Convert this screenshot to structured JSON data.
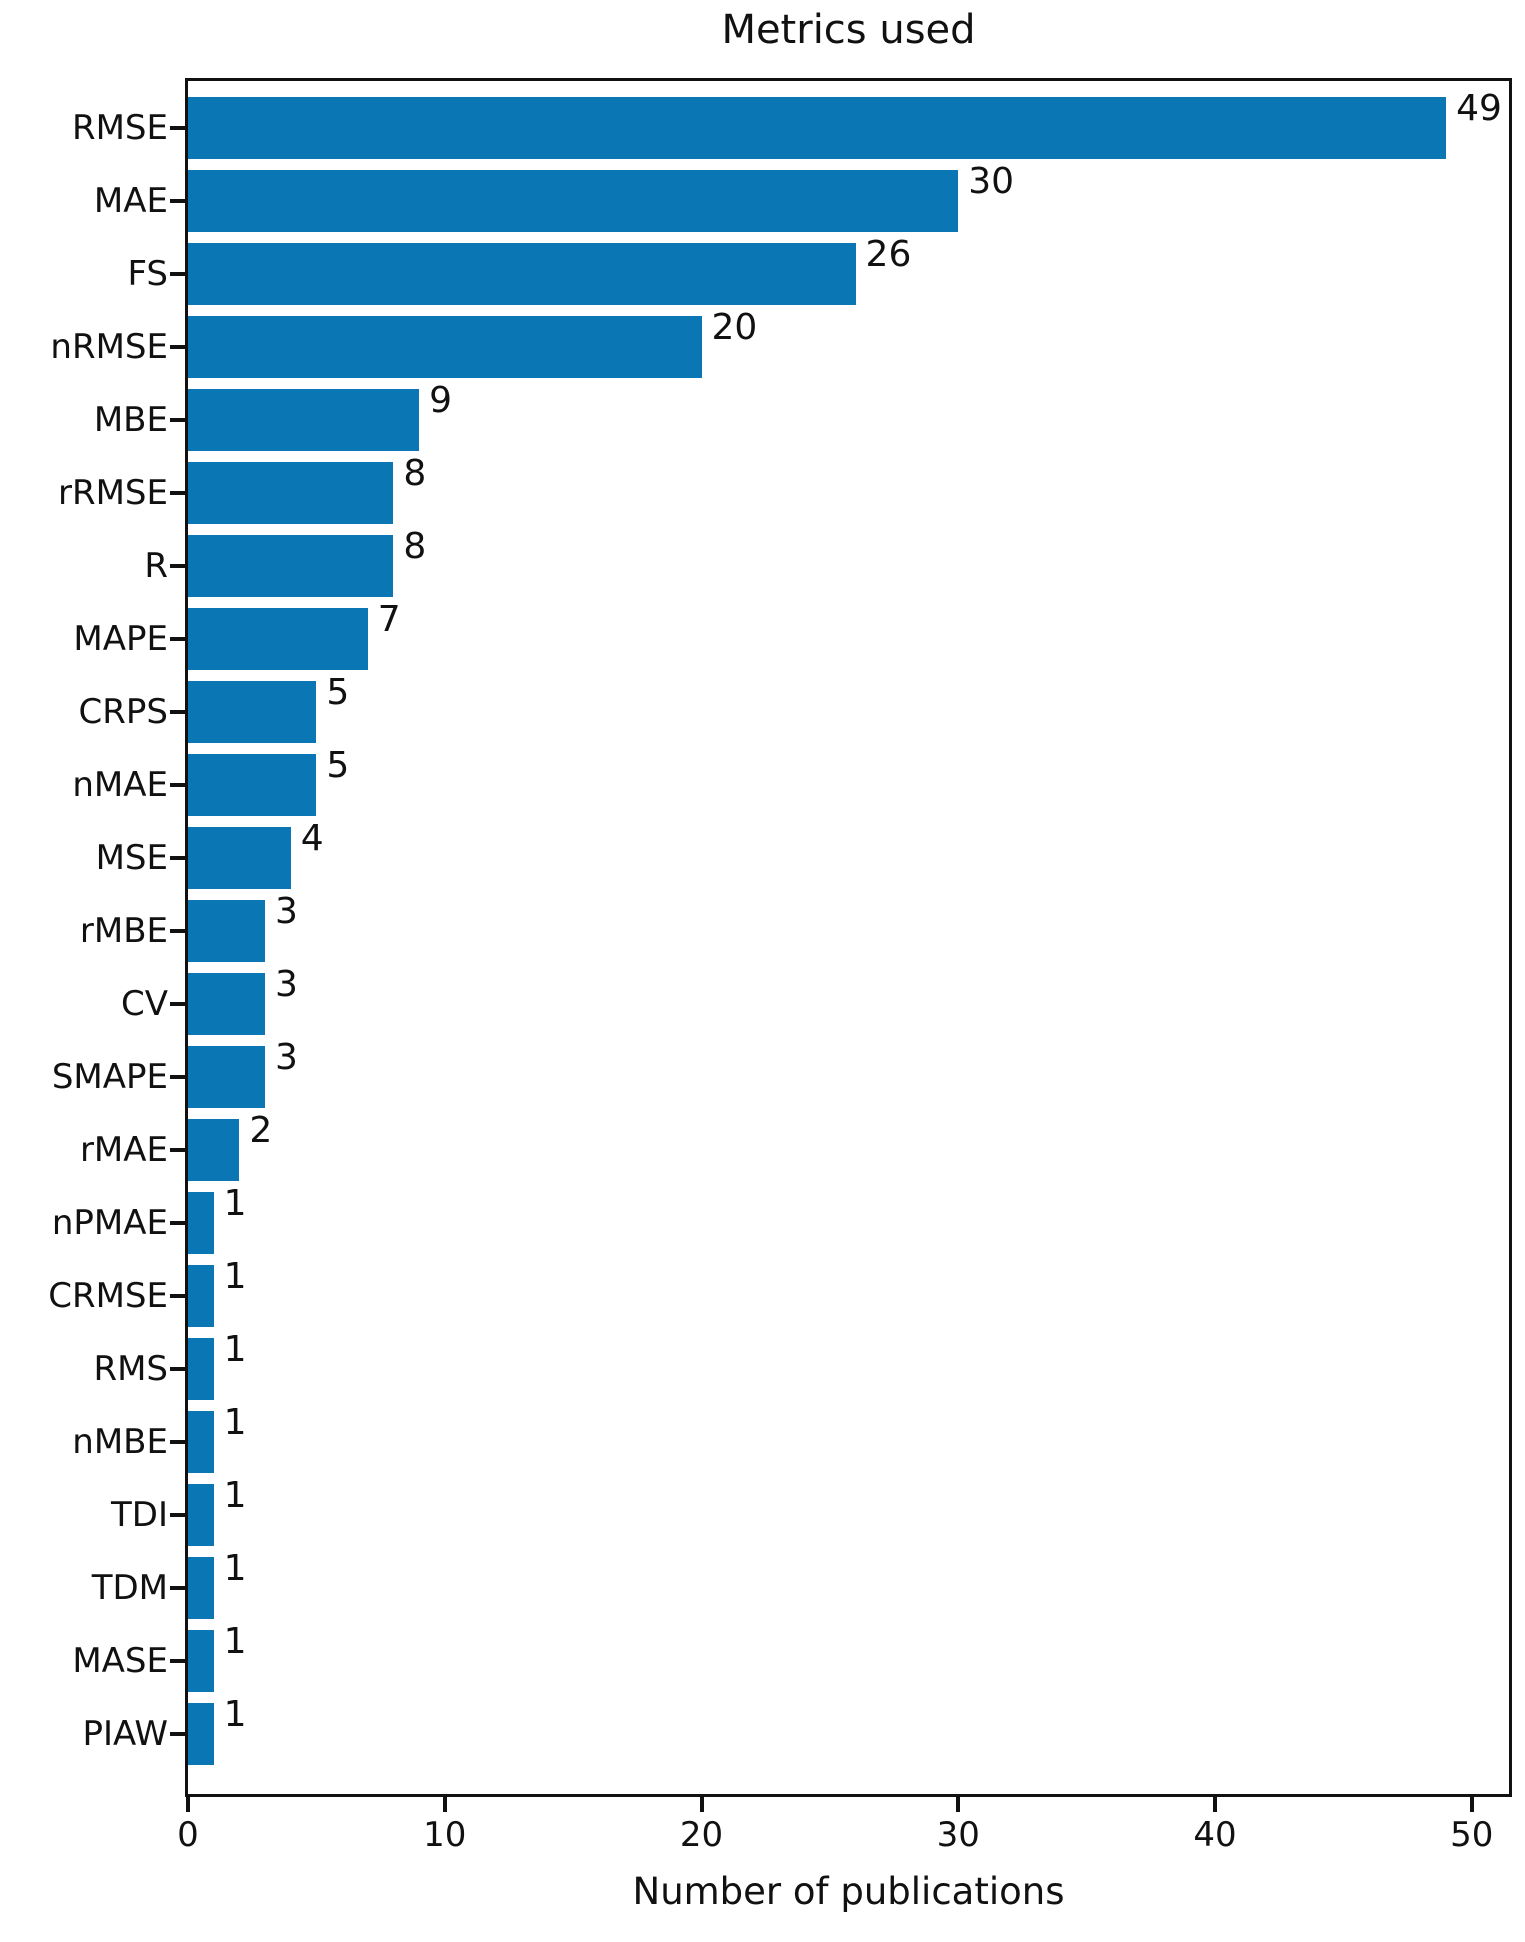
{
  "chart_data": {
    "type": "bar",
    "orientation": "horizontal",
    "title": "Metrics used",
    "xlabel": "Number of publications",
    "ylabel": "",
    "categories": [
      "RMSE",
      "MAE",
      "FS",
      "nRMSE",
      "MBE",
      "rRMSE",
      "R",
      "MAPE",
      "CRPS",
      "nMAE",
      "MSE",
      "rMBE",
      "CV",
      "SMAPE",
      "rMAE",
      "nPMAE",
      "CRMSE",
      "RMS",
      "nMBE",
      "TDI",
      "TDM",
      "MASE",
      "PIAW"
    ],
    "values": [
      49,
      30,
      26,
      20,
      9,
      8,
      8,
      7,
      5,
      5,
      4,
      3,
      3,
      3,
      2,
      1,
      1,
      1,
      1,
      1,
      1,
      1,
      1
    ],
    "value_labels_shown": true,
    "xticks": [
      0,
      10,
      20,
      30,
      40,
      50
    ],
    "xlim": [
      0,
      51.45
    ],
    "bar_color": "#0a76b4",
    "axis_color": "#111111",
    "grid": false,
    "legend": "none"
  }
}
